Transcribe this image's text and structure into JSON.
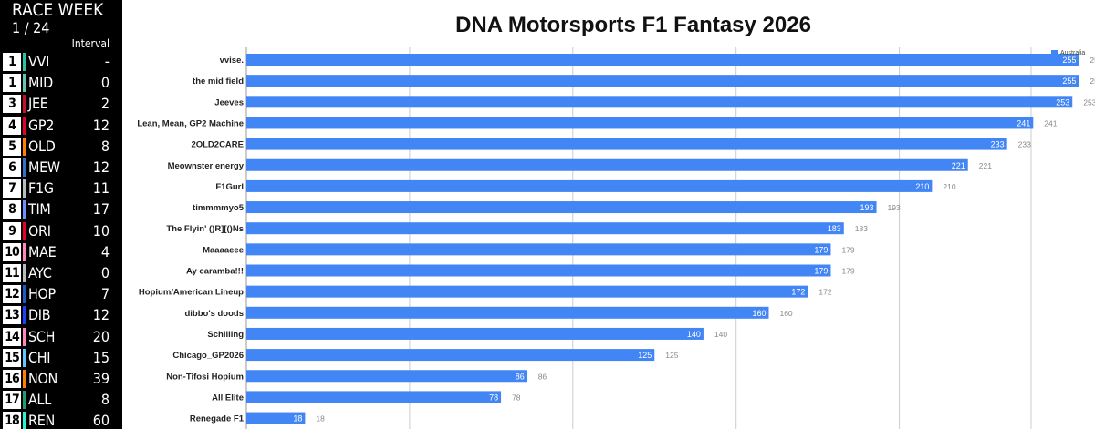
{
  "leaderboard": {
    "title": "RACE WEEK",
    "round": "1 / 24",
    "interval_header": "Interval",
    "rows": [
      {
        "pos": "1",
        "code": "VVI",
        "gap": "-",
        "color": "#2bbfa4"
      },
      {
        "pos": "1",
        "code": "MID",
        "gap": "0",
        "color": "#64c4b0"
      },
      {
        "pos": "3",
        "code": "JEE",
        "gap": "2",
        "color": "#c8102e"
      },
      {
        "pos": "4",
        "code": "GP2",
        "gap": "12",
        "color": "#e8002d"
      },
      {
        "pos": "5",
        "code": "OLD",
        "gap": "8",
        "color": "#ff8000"
      },
      {
        "pos": "6",
        "code": "MEW",
        "gap": "12",
        "color": "#3671c6"
      },
      {
        "pos": "7",
        "code": "F1G",
        "gap": "11",
        "color": "#b6babd"
      },
      {
        "pos": "8",
        "code": "TIM",
        "gap": "17",
        "color": "#6692ff"
      },
      {
        "pos": "9",
        "code": "ORI",
        "gap": "10",
        "color": "#e8002d"
      },
      {
        "pos": "10",
        "code": "MAE",
        "gap": "4",
        "color": "#ff87bc"
      },
      {
        "pos": "11",
        "code": "AYC",
        "gap": "0",
        "color": "#b6babd"
      },
      {
        "pos": "12",
        "code": "HOP",
        "gap": "7",
        "color": "#1e5bc6"
      },
      {
        "pos": "13",
        "code": "DIB",
        "gap": "12",
        "color": "#1e41ff"
      },
      {
        "pos": "14",
        "code": "SCH",
        "gap": "20",
        "color": "#ff87bc"
      },
      {
        "pos": "15",
        "code": "CHI",
        "gap": "15",
        "color": "#64c4ff"
      },
      {
        "pos": "16",
        "code": "NON",
        "gap": "39",
        "color": "#ff8000"
      },
      {
        "pos": "17",
        "code": "ALL",
        "gap": "8",
        "color": "#229971"
      },
      {
        "pos": "18",
        "code": "REN",
        "gap": "60",
        "color": "#27f4d2"
      }
    ]
  },
  "chart_data": {
    "type": "bar",
    "orientation": "horizontal",
    "title": "DNA Motorsports F1 Fantasy 2026",
    "categories": [
      "vvise.",
      "the mid field",
      "Jeeves",
      "Lean, Mean, GP2 Machine",
      "2OLD2CARE",
      "Meownster energy",
      "F1Gurl",
      "timmmmyo5",
      "The Flyin' ()R][()Ns",
      "Maaaaeee",
      "Ay caramba!!!",
      "Hopium/American Lineup",
      "dibbo's doods",
      "Schilling",
      "Chicago_GP2026",
      "Non-Tifosi Hopium",
      "All Elite",
      "Renegade F1"
    ],
    "series": [
      {
        "name": "Australia",
        "color": "#4285f4",
        "values": [
          255,
          255,
          253,
          241,
          233,
          221,
          210,
          193,
          183,
          179,
          179,
          172,
          160,
          140,
          125,
          86,
          78,
          18
        ]
      }
    ],
    "xlim": [
      0,
      300
    ],
    "grid": true,
    "data_labels": "inside-end and outside",
    "legend": "top-right"
  }
}
